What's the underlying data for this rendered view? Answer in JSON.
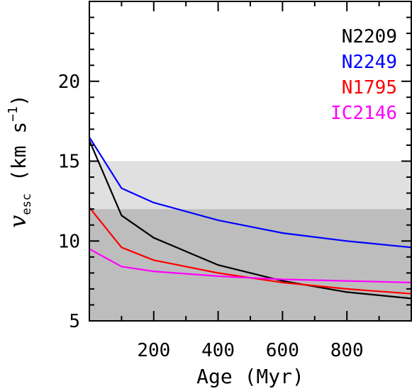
{
  "chart_data": {
    "type": "line",
    "xlabel": "Age (Myr)",
    "ylabel": {
      "symbol": "v",
      "subscript": "esc",
      "unit": "(km s",
      "superscript": "−1",
      "close": ")"
    },
    "xlim": [
      0,
      1000
    ],
    "ylim": [
      5,
      25
    ],
    "xticks": [
      200,
      400,
      600,
      800
    ],
    "yticks": [
      5,
      10,
      15,
      20
    ],
    "bands": [
      {
        "y0": 5,
        "y1": 12,
        "color": "#bdbdbd"
      },
      {
        "y0": 12,
        "y1": 15,
        "color": "#e0e0e0"
      }
    ],
    "legend_position": "top-right",
    "series": [
      {
        "name": "N2209",
        "color": "#000000",
        "x": [
          0,
          100,
          200,
          400,
          600,
          800,
          1000
        ],
        "y": [
          16.3,
          11.6,
          10.2,
          8.5,
          7.5,
          6.8,
          6.4
        ]
      },
      {
        "name": "N2249",
        "color": "#0000ff",
        "x": [
          0,
          100,
          200,
          400,
          600,
          800,
          1000
        ],
        "y": [
          16.5,
          13.3,
          12.4,
          11.3,
          10.5,
          10.0,
          9.6
        ]
      },
      {
        "name": "N1795",
        "color": "#ff0000",
        "x": [
          0,
          100,
          200,
          400,
          600,
          800,
          1000
        ],
        "y": [
          12.1,
          9.6,
          8.8,
          8.0,
          7.4,
          7.0,
          6.7
        ]
      },
      {
        "name": "IC2146",
        "color": "#ff00ff",
        "x": [
          0,
          100,
          200,
          400,
          600,
          800,
          1000
        ],
        "y": [
          9.5,
          8.4,
          8.1,
          7.8,
          7.6,
          7.5,
          7.4
        ]
      }
    ]
  }
}
